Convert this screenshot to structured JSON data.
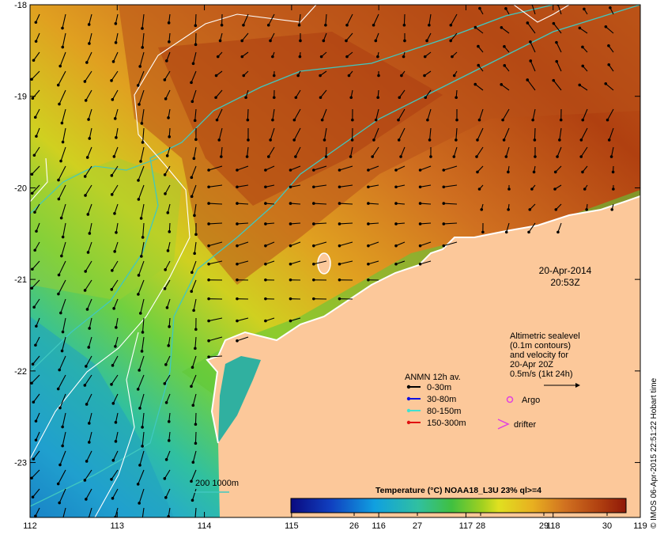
{
  "map": {
    "lon_ticks": [
      "112",
      "113",
      "114",
      "115",
      "116",
      "117",
      "118",
      "119"
    ],
    "lat_ticks": [
      "-18",
      "-19",
      "-20",
      "-21",
      "-22",
      "-23"
    ],
    "lon_range": [
      112,
      119
    ],
    "lat_range": [
      -23.6,
      -18
    ]
  },
  "annotation": {
    "date": "20-Apr-2014",
    "time": "20:53Z"
  },
  "altimetry": {
    "lines": [
      "Altimetric sealevel",
      "(0.1m contours)",
      "and velocity for",
      "20-Apr 20Z",
      "0.5m/s (1kt 24h)"
    ]
  },
  "anmn_legend": {
    "title": "ANMN 12h av.",
    "items": [
      {
        "label": "0-30m",
        "color": "#000000"
      },
      {
        "label": "30-80m",
        "color": "#1010e0"
      },
      {
        "label": "80-150m",
        "color": "#40e0d0"
      },
      {
        "label": "150-300m",
        "color": "#e01010"
      }
    ]
  },
  "symbols": {
    "argo": "Argo",
    "drifter": "drifter",
    "argo_color": "#e040e0",
    "drifter_color": "#e040e0"
  },
  "bathy_legend": {
    "label": "200 1000m",
    "color": "#40c8c0"
  },
  "colorbar": {
    "title": "Temperature (°C) NOAA18_L3U 23% ql>=4",
    "ticks": [
      "26",
      "27",
      "28",
      "29",
      "30"
    ],
    "range": [
      25,
      30.3
    ]
  },
  "credit": "© IMOS 06-Apr-2015 22:51:22 Hobart time",
  "colors": {
    "land": "#fcc89a",
    "coast": "#ffffff",
    "bathy": "#40c8c0",
    "sealevel": "#ffffff"
  }
}
